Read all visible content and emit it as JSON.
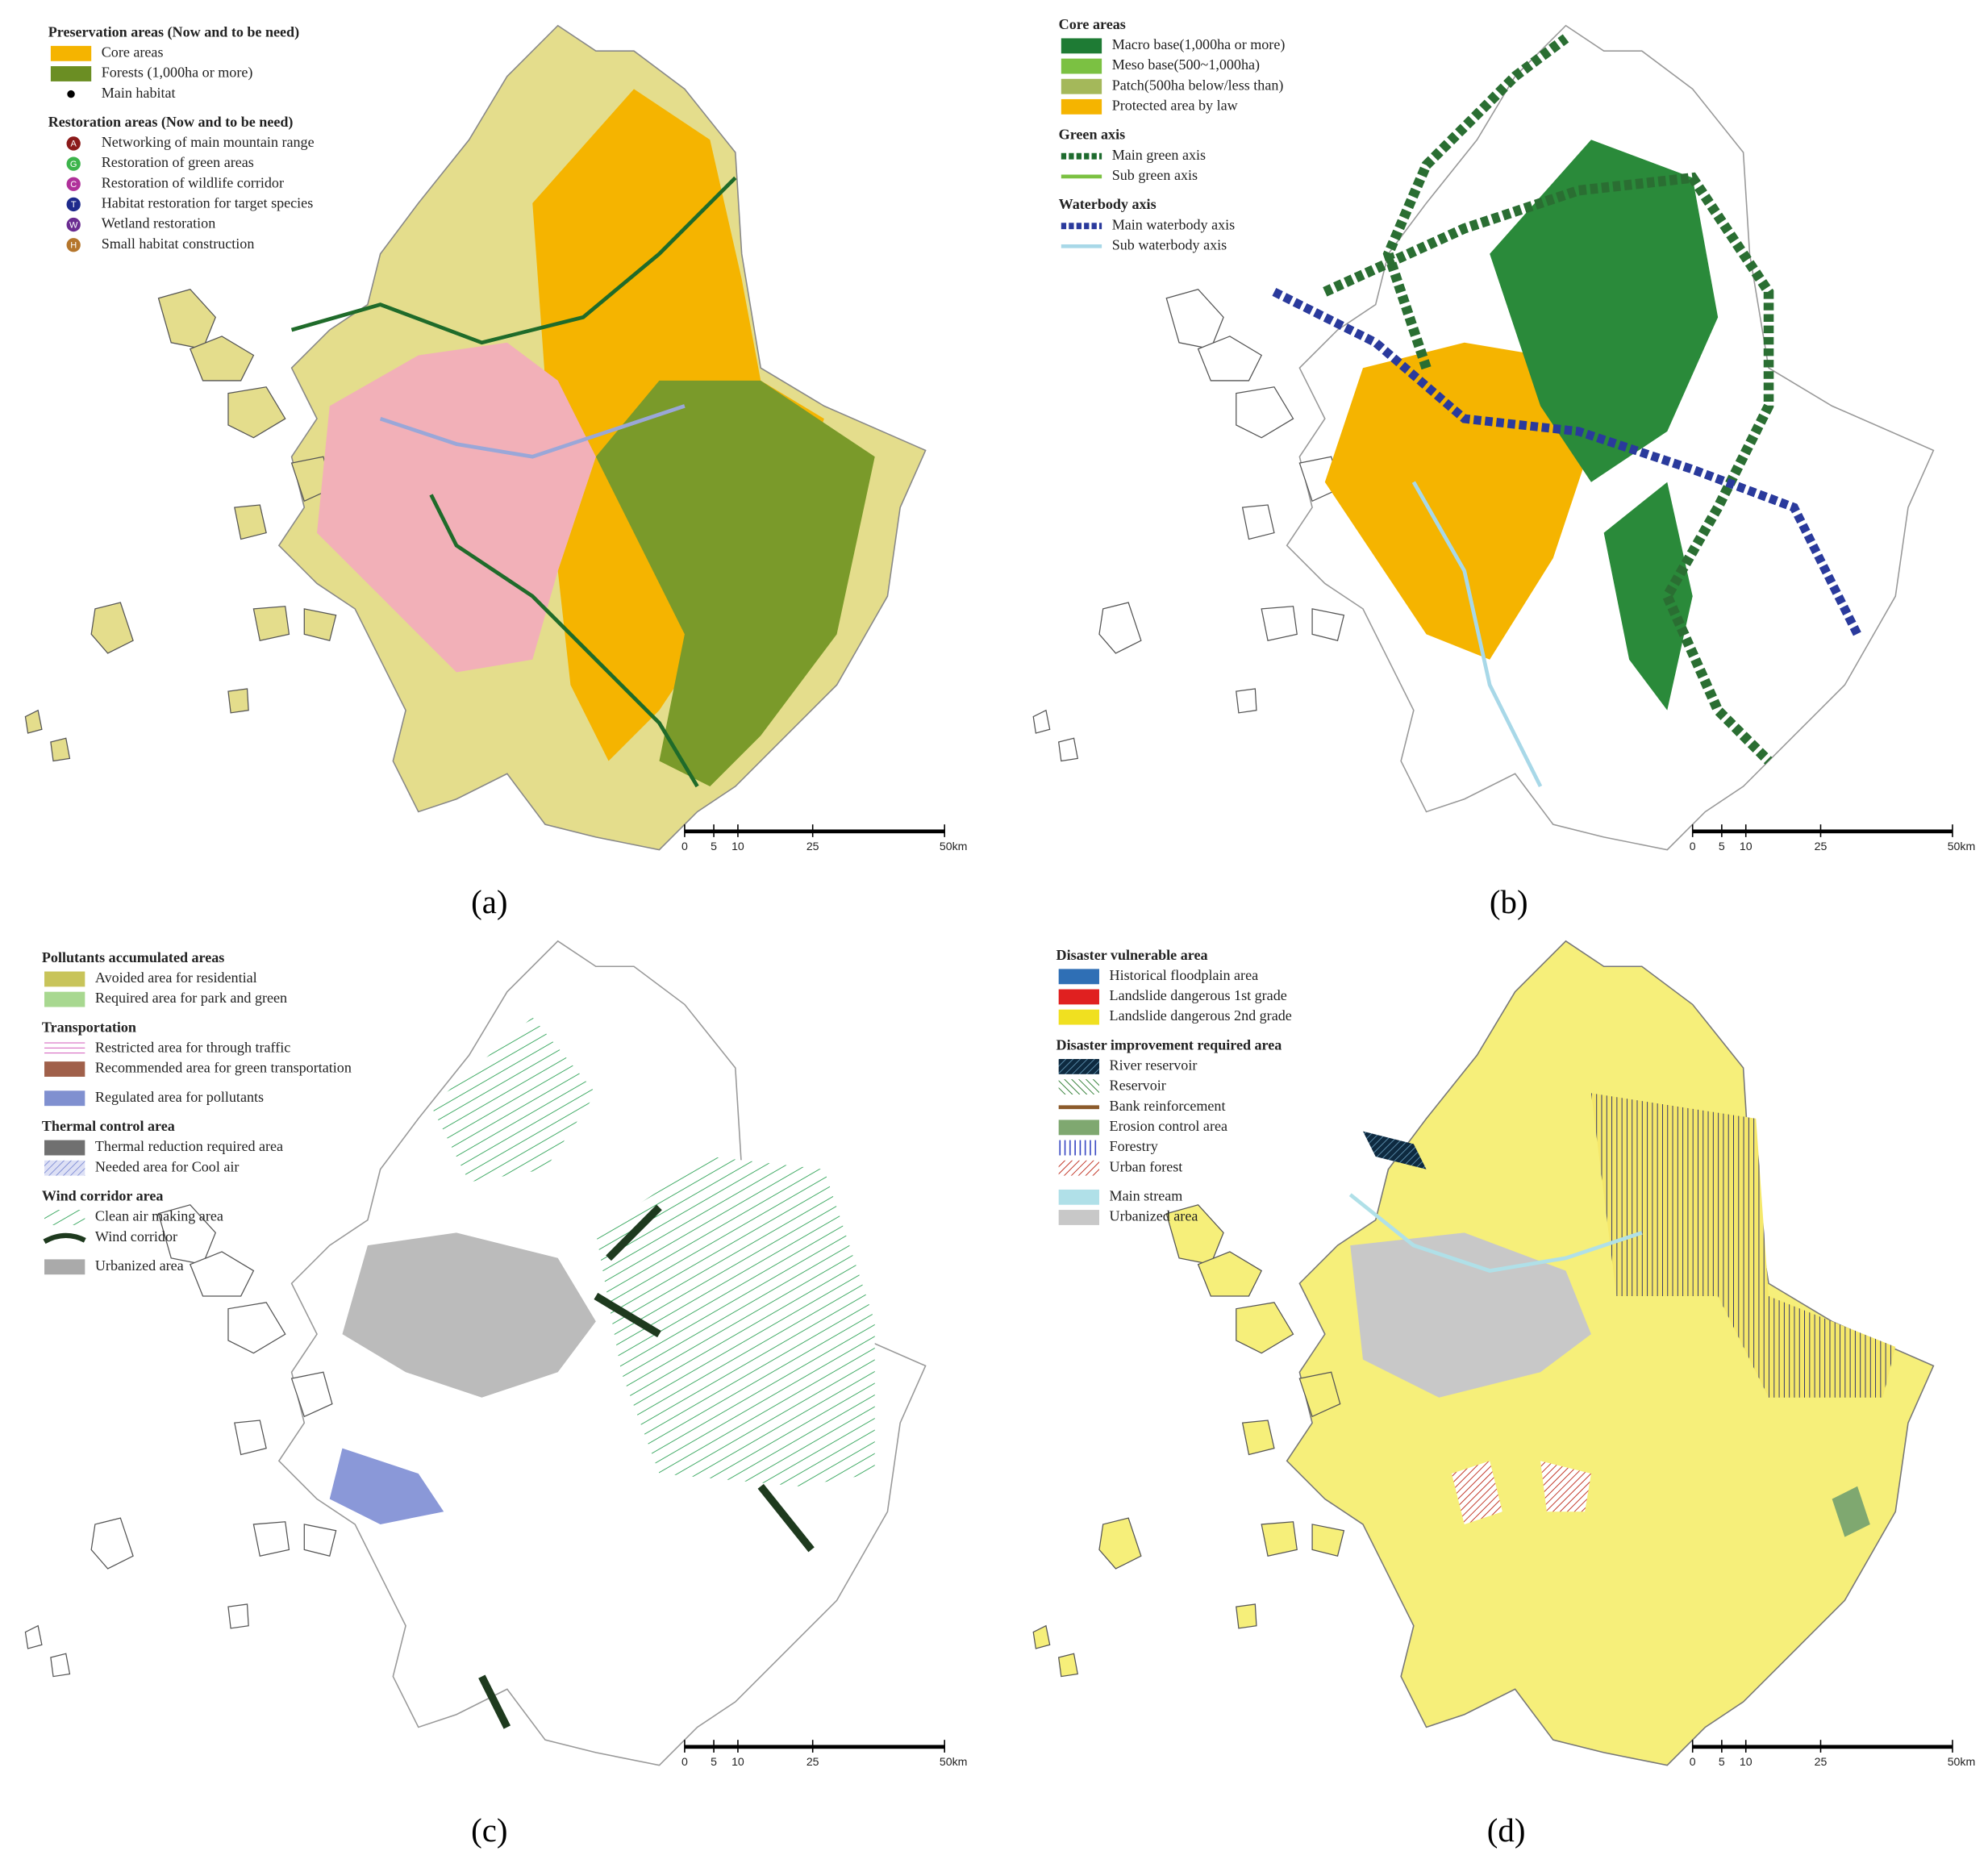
{
  "panels": [
    {
      "label": "(a)",
      "scale": [
        "0",
        "5",
        "10",
        "25",
        "50km"
      ],
      "legend": [
        {
          "heading": "Preservation areas (Now and to be need)",
          "items": [
            {
              "text": "Core areas"
            },
            {
              "text": "Forests (1,000ha or more)"
            },
            {
              "text": "Main habitat"
            }
          ]
        },
        {
          "heading": "Restoration areas (Now and to be need)",
          "items": [
            {
              "marker": "A",
              "text": "Networking of main mountain range"
            },
            {
              "marker": "G",
              "text": "Restoration of green areas"
            },
            {
              "marker": "C",
              "text": "Restoration of wildlife corridor"
            },
            {
              "marker": "T",
              "text": "Habitat restoration for target species"
            },
            {
              "marker": "W",
              "text": "Wetland restoration"
            },
            {
              "marker": "H",
              "text": "Small habitat construction"
            }
          ]
        }
      ]
    },
    {
      "label": "(b)",
      "scale": [
        "0",
        "5",
        "10",
        "25",
        "50km"
      ],
      "legend": [
        {
          "heading": "Core areas",
          "items": [
            {
              "text": "Macro base(1,000ha or more)"
            },
            {
              "text": "Meso base(500~1,000ha)"
            },
            {
              "text": "Patch(500ha below/less than)"
            },
            {
              "text": "Protected area by law"
            }
          ]
        },
        {
          "heading": "Green axis",
          "items": [
            {
              "text": "Main green axis"
            },
            {
              "text": "Sub green axis"
            }
          ]
        },
        {
          "heading": "Waterbody axis",
          "items": [
            {
              "text": "Main waterbody axis"
            },
            {
              "text": "Sub waterbody axis"
            }
          ]
        }
      ]
    },
    {
      "label": "(c)",
      "scale": [
        "0",
        "5",
        "10",
        "25",
        "50km"
      ],
      "legend": [
        {
          "heading": "Pollutants accumulated areas",
          "items": [
            {
              "text": "Avoided area for residential"
            },
            {
              "text": "Required area for park and green"
            }
          ]
        },
        {
          "heading": "Transportation",
          "items": [
            {
              "text": "Restricted area for through traffic"
            },
            {
              "text": "Recommended area for green transportation"
            }
          ]
        },
        {
          "items": [
            {
              "text": "Regulated area for pollutants"
            }
          ]
        },
        {
          "heading": "Thermal control area",
          "items": [
            {
              "text": "Thermal reduction required area"
            },
            {
              "text": "Needed area for Cool air"
            }
          ]
        },
        {
          "heading": "Wind corridor area",
          "items": [
            {
              "text": "Clean air making area"
            },
            {
              "text": "Wind corridor"
            }
          ]
        },
        {
          "items": [
            {
              "text": "Urbanized area"
            }
          ]
        }
      ]
    },
    {
      "label": "(d)",
      "scale": [
        "0",
        "5",
        "10",
        "25",
        "50km"
      ],
      "legend": [
        {
          "heading": "Disaster vulnerable area",
          "items": [
            {
              "text": "Historical floodplain area"
            },
            {
              "text": "Landslide dangerous 1st grade"
            },
            {
              "text": "Landslide dangerous 2nd grade"
            }
          ]
        },
        {
          "heading": "Disaster improvement required area",
          "items": [
            {
              "text": "River reservoir"
            },
            {
              "text": "Reservoir"
            },
            {
              "text": "Bank reinforcement"
            },
            {
              "text": "Erosion control area"
            },
            {
              "text": "Forestry"
            },
            {
              "text": "Urban forest"
            }
          ]
        },
        {
          "items": [
            {
              "text": "Main stream"
            },
            {
              "text": "Urbanized area"
            }
          ]
        }
      ]
    }
  ]
}
